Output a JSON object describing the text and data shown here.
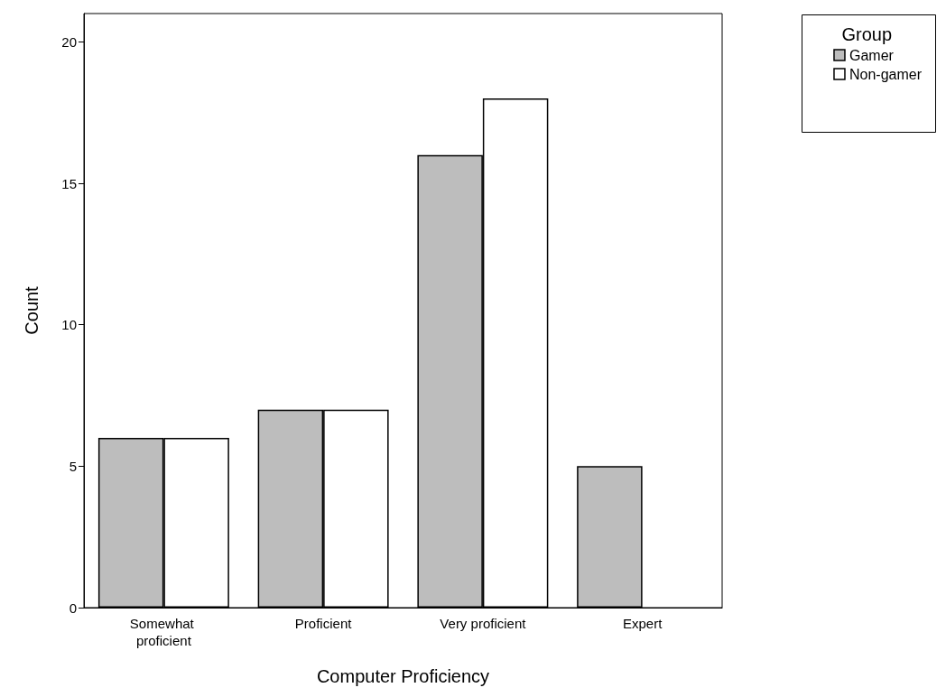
{
  "chart_data": {
    "type": "bar",
    "xlabel": "Computer Proficiency",
    "ylabel": "Count",
    "legend_title": "Group",
    "categories": [
      "Somewhat proficient",
      "Proficient",
      "Very proficient",
      "Expert"
    ],
    "series": [
      {
        "name": "Gamer",
        "color": "#bdbdbd",
        "values": [
          6,
          7,
          16,
          5
        ]
      },
      {
        "name": "Non-gamer",
        "color": "#ffffff",
        "values": [
          6,
          7,
          18,
          0
        ]
      }
    ],
    "ylim": [
      0,
      21
    ],
    "yticks": [
      0,
      5,
      10,
      15,
      20
    ],
    "grid": false,
    "legend": "top right"
  }
}
